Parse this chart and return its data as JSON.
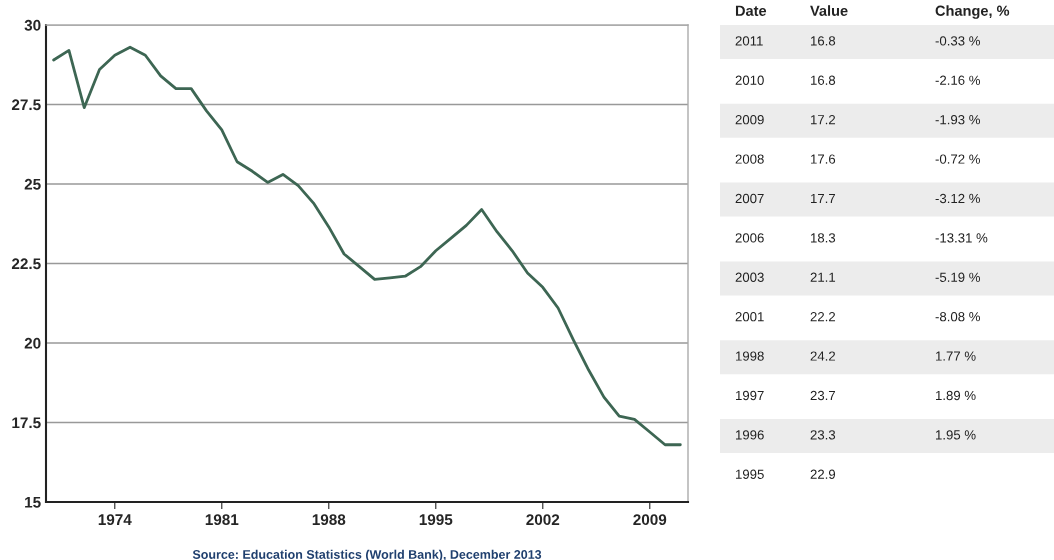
{
  "chart_data": [
    {
      "type": "line",
      "x": [
        1970,
        1971,
        1972,
        1973,
        1974,
        1975,
        1976,
        1977,
        1978,
        1979,
        1980,
        1981,
        1982,
        1983,
        1984,
        1985,
        1986,
        1987,
        1988,
        1989,
        1990,
        1991,
        1992,
        1993,
        1994,
        1995,
        1996,
        1997,
        1998,
        1999,
        2000,
        2001,
        2002,
        2003,
        2004,
        2005,
        2006,
        2007,
        2008,
        2009,
        2010,
        2011
      ],
      "series": [
        {
          "color": "#3d6653",
          "values": [
            28.9,
            29.2,
            27.4,
            28.6,
            29.05,
            29.3,
            29.05,
            28.4,
            28.0,
            28.0,
            27.3,
            26.7,
            25.7,
            25.4,
            25.05,
            25.3,
            24.95,
            24.4,
            23.65,
            22.8,
            22.4,
            22.0,
            22.05,
            22.1,
            22.4,
            22.9,
            23.3,
            23.7,
            24.2,
            23.5,
            22.9,
            22.2,
            21.75,
            21.1,
            20.1,
            19.15,
            18.3,
            17.7,
            17.6,
            17.2,
            16.8,
            16.8
          ]
        }
      ],
      "xlim": [
        1969.5,
        2011.5
      ],
      "xticks": [
        1974,
        1981,
        1988,
        1995,
        2002,
        2009
      ],
      "ylim": [
        15,
        30
      ],
      "yticks": [
        15,
        17.5,
        20,
        22.5,
        25,
        27.5,
        30
      ],
      "grid": "y",
      "legend": false,
      "marker": "none",
      "line_style": "solid",
      "annotations": [
        "Source: Education Statistics (World Bank), December 2013",
        "Date",
        "Value",
        "Change, %",
        "2011",
        "16.8",
        "-0.33 %",
        "2010",
        "16.8",
        "-2.16 %",
        "2009",
        "17.2",
        "-1.93 %",
        "2008",
        "17.6",
        "-0.72 %",
        "2007",
        "17.7",
        "-3.12 %",
        "2006",
        "18.3",
        "-13.31 %",
        "2003",
        "21.1",
        "-5.19 %",
        "2001",
        "22.2",
        "-8.08 %",
        "1998",
        "24.2",
        "1.77 %",
        "1997",
        "23.7",
        "1.89 %",
        "1996",
        "23.3",
        "1.95 %",
        "1995",
        "22.9"
      ]
    }
  ]
}
